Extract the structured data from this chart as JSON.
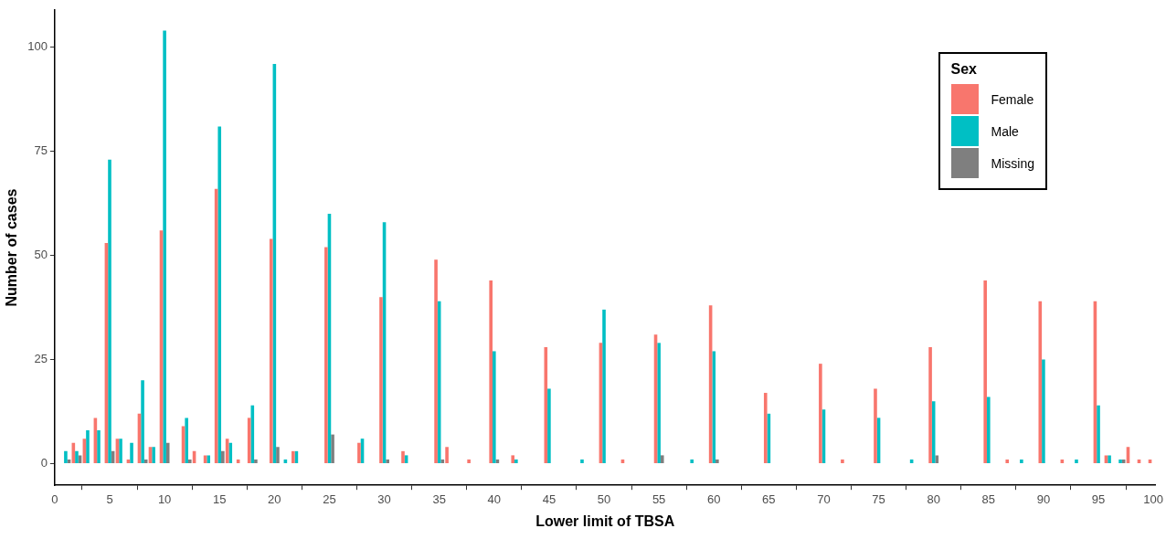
{
  "chart_data": {
    "type": "bar",
    "xlabel": "Lower limit of TBSA",
    "ylabel": "Number of cases",
    "legend_title": "Sex",
    "legend": "top right",
    "x": [
      1,
      2,
      3,
      4,
      5,
      6,
      7,
      8,
      9,
      10,
      12,
      13,
      14,
      15,
      16,
      17,
      18,
      20,
      21,
      22,
      25,
      28,
      30,
      32,
      35,
      36,
      38,
      40,
      42,
      45,
      48,
      50,
      52,
      55,
      58,
      60,
      65,
      70,
      72,
      75,
      78,
      80,
      85,
      87,
      88,
      90,
      92,
      93,
      95,
      96,
      97,
      98,
      99,
      100
    ],
    "series": [
      {
        "name": "Female",
        "color": "#f8766d",
        "values": [
          null,
          5,
          6,
          11,
          53,
          6,
          1,
          12,
          4,
          56,
          9,
          3,
          2,
          66,
          6,
          1,
          11,
          54,
          null,
          3,
          52,
          5,
          40,
          3,
          49,
          4,
          1,
          44,
          2,
          28,
          null,
          29,
          1,
          31,
          null,
          38,
          17,
          24,
          1,
          18,
          null,
          28,
          44,
          1,
          null,
          39,
          1,
          null,
          39,
          2,
          null,
          4,
          1,
          1
        ]
      },
      {
        "name": "Male",
        "color": "#00bfc4",
        "values": [
          3,
          3,
          8,
          8,
          73,
          6,
          5,
          20,
          4,
          104,
          11,
          null,
          2,
          81,
          5,
          null,
          14,
          96,
          1,
          3,
          60,
          6,
          58,
          2,
          39,
          null,
          null,
          27,
          1,
          18,
          1,
          37,
          null,
          29,
          1,
          27,
          12,
          13,
          null,
          11,
          1,
          15,
          16,
          null,
          1,
          25,
          null,
          1,
          14,
          2,
          1,
          null,
          null,
          null
        ]
      },
      {
        "name": "Missing",
        "color": "#7f7f7f",
        "values": [
          1,
          2,
          null,
          null,
          3,
          null,
          null,
          1,
          null,
          5,
          1,
          null,
          null,
          3,
          null,
          null,
          1,
          4,
          null,
          null,
          7,
          null,
          1,
          null,
          1,
          null,
          null,
          1,
          null,
          null,
          null,
          null,
          null,
          2,
          null,
          1,
          null,
          null,
          null,
          null,
          null,
          2,
          null,
          null,
          null,
          null,
          null,
          null,
          null,
          null,
          1,
          null,
          null,
          null
        ]
      }
    ],
    "xlim": [
      0,
      100.2
    ],
    "xticks": [
      0,
      5,
      10,
      15,
      20,
      25,
      30,
      35,
      40,
      45,
      50,
      55,
      60,
      65,
      70,
      75,
      80,
      85,
      90,
      95,
      100
    ],
    "ylim": [
      -5.2,
      109
    ],
    "yticks": [
      0,
      25,
      50,
      75,
      100
    ]
  }
}
